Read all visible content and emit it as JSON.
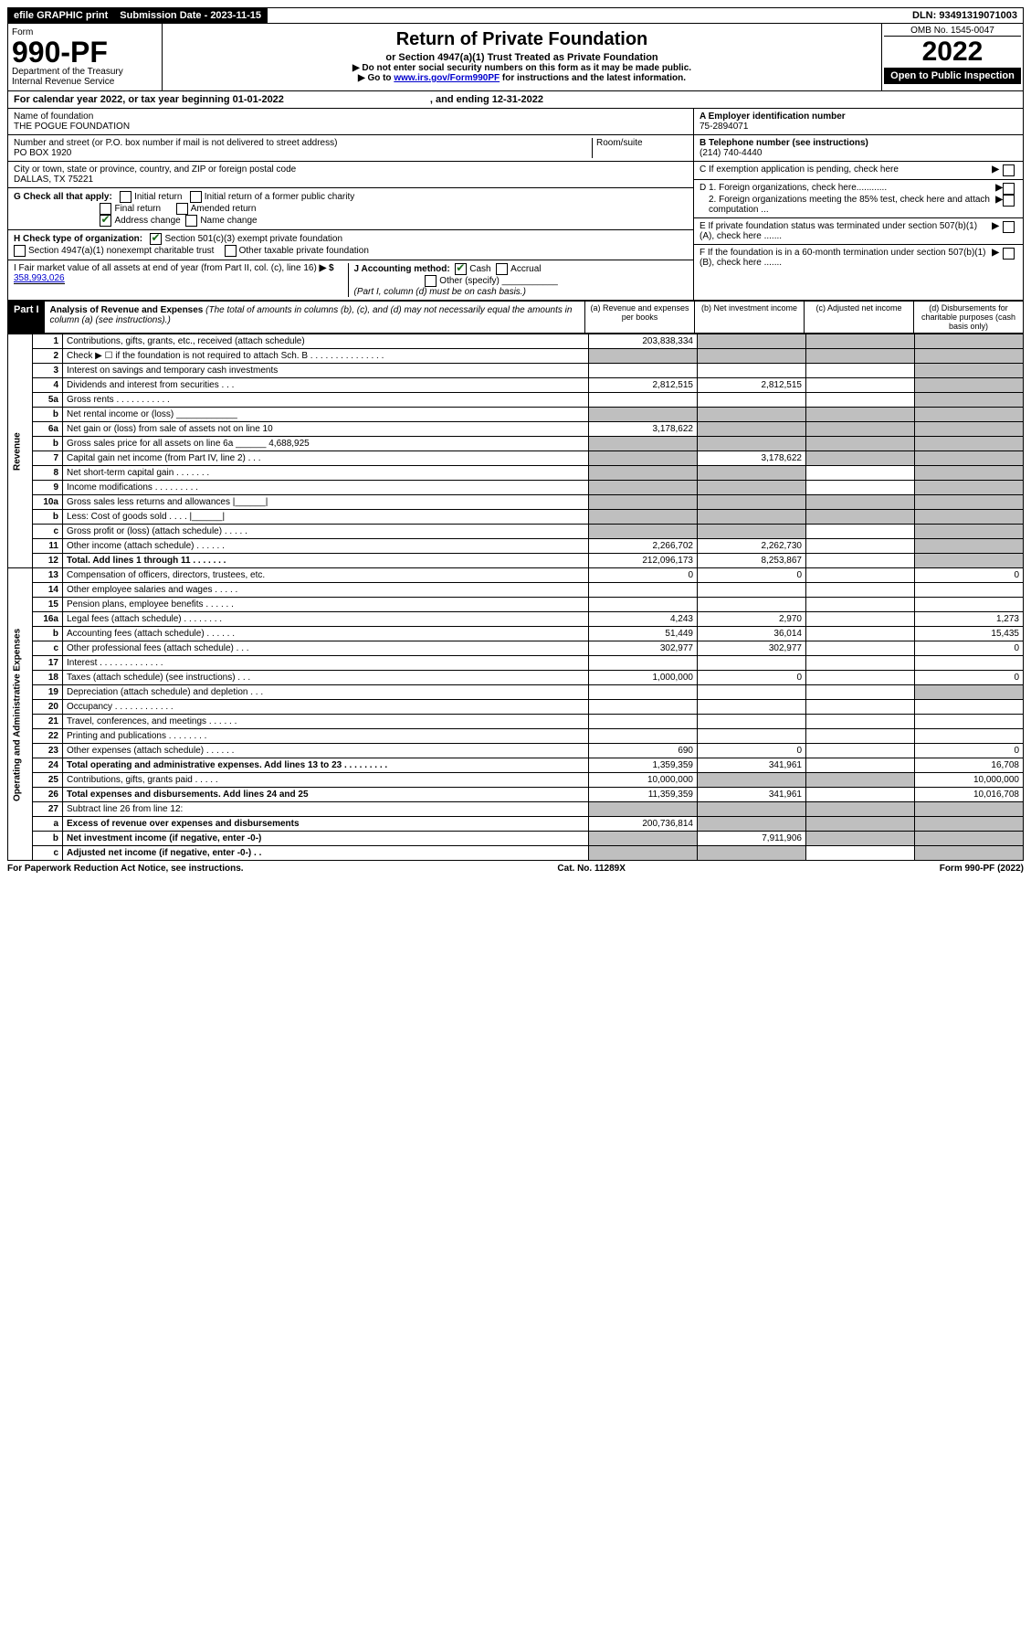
{
  "topbar": {
    "efile": "efile GRAPHIC print",
    "sub_label": "Submission Date - 2023-11-15",
    "dln": "DLN: 93491319071003"
  },
  "header": {
    "form_word": "Form",
    "form_no": "990-PF",
    "dept": "Department of the Treasury",
    "irs": "Internal Revenue Service",
    "title": "Return of Private Foundation",
    "subtitle": "or Section 4947(a)(1) Trust Treated as Private Foundation",
    "note1": "▶ Do not enter social security numbers on this form as it may be made public.",
    "note2_pre": "▶ Go to ",
    "link": "www.irs.gov/Form990PF",
    "note2_post": " for instructions and the latest information.",
    "omb": "OMB No. 1545-0047",
    "year": "2022",
    "open": "Open to Public Inspection"
  },
  "cal": {
    "text": "For calendar year 2022, or tax year beginning 01-01-2022",
    "end": ", and ending 12-31-2022"
  },
  "info": {
    "name_label": "Name of foundation",
    "name": "THE POGUE FOUNDATION",
    "addr_label": "Number and street (or P.O. box number if mail is not delivered to street address)",
    "addr": "PO BOX 1920",
    "room_label": "Room/suite",
    "city_label": "City or town, state or province, country, and ZIP or foreign postal code",
    "city": "DALLAS, TX  75221",
    "a_label": "A Employer identification number",
    "a_val": "75-2894071",
    "b_label": "B Telephone number (see instructions)",
    "b_val": "(214) 740-4440",
    "c_label": "C If exemption application is pending, check here",
    "d1": "D 1. Foreign organizations, check here............",
    "d2": "2. Foreign organizations meeting the 85% test, check here and attach computation ...",
    "e": "E  If private foundation status was terminated under section 507(b)(1)(A), check here .......",
    "f": "F  If the foundation is in a 60-month termination under section 507(b)(1)(B), check here .......",
    "g": "G Check all that apply:",
    "g_opts": [
      "Initial return",
      "Initial return of a former public charity",
      "Final return",
      "Amended return",
      "Address change",
      "Name change"
    ],
    "h": "H Check type of organization:",
    "h1": "Section 501(c)(3) exempt private foundation",
    "h2": "Section 4947(a)(1) nonexempt charitable trust",
    "h3": "Other taxable private foundation",
    "i": "I Fair market value of all assets at end of year (from Part II, col. (c), line 16)",
    "i_val": "358,993,026",
    "j": "J Accounting method:",
    "j_cash": "Cash",
    "j_accr": "Accrual",
    "j_other": "Other (specify)",
    "j_note": "(Part I, column (d) must be on cash basis.)"
  },
  "part1": {
    "label": "Part I",
    "title": "Analysis of Revenue and Expenses",
    "title_note": "(The total of amounts in columns (b), (c), and (d) may not necessarily equal the amounts in column (a) (see instructions).)",
    "col_a": "(a)    Revenue and expenses per books",
    "col_b": "(b)    Net investment income",
    "col_c": "(c)   Adjusted net income",
    "col_d": "(d)   Disbursements for charitable purposes (cash basis only)"
  },
  "sides": {
    "rev": "Revenue",
    "exp": "Operating and Administrative Expenses"
  },
  "rows": [
    {
      "n": "1",
      "t": "Contributions, gifts, grants, etc., received (attach schedule)",
      "a": "203,838,334",
      "b": "sh",
      "c": "sh",
      "d": "sh"
    },
    {
      "n": "2",
      "t": "Check ▶ ☐ if the foundation is not required to attach Sch. B    .  .  .  .  .  .  .  .  .  .  .  .  .  .  .",
      "a": "sh",
      "b": "sh",
      "c": "sh",
      "d": "sh"
    },
    {
      "n": "3",
      "t": "Interest on savings and temporary cash investments",
      "a": "",
      "b": "",
      "c": "",
      "d": "sh"
    },
    {
      "n": "4",
      "t": "Dividends and interest from securities    .   .   .",
      "a": "2,812,515",
      "b": "2,812,515",
      "c": "",
      "d": "sh"
    },
    {
      "n": "5a",
      "t": "Gross rents    .   .   .   .   .   .   .   .   .   .   .",
      "a": "",
      "b": "",
      "c": "",
      "d": "sh"
    },
    {
      "n": "b",
      "t": "Net rental income or (loss)    ____________",
      "a": "sh",
      "b": "sh",
      "c": "sh",
      "d": "sh"
    },
    {
      "n": "6a",
      "t": "Net gain or (loss) from sale of assets not on line 10",
      "a": "3,178,622",
      "b": "sh",
      "c": "sh",
      "d": "sh"
    },
    {
      "n": "b",
      "t": "Gross sales price for all assets on line 6a ______ 4,688,925",
      "a": "sh",
      "b": "sh",
      "c": "sh",
      "d": "sh"
    },
    {
      "n": "7",
      "t": "Capital gain net income (from Part IV, line 2)   .   .   .",
      "a": "sh",
      "b": "3,178,622",
      "c": "sh",
      "d": "sh"
    },
    {
      "n": "8",
      "t": "Net short-term capital gain   .   .   .   .   .   .   .",
      "a": "sh",
      "b": "sh",
      "c": "",
      "d": "sh"
    },
    {
      "n": "9",
      "t": "Income modifications  .   .   .   .   .   .   .   .   .",
      "a": "sh",
      "b": "sh",
      "c": "",
      "d": "sh"
    },
    {
      "n": "10a",
      "t": "Gross sales less returns and allowances   |______|",
      "a": "sh",
      "b": "sh",
      "c": "sh",
      "d": "sh"
    },
    {
      "n": "b",
      "t": "Less: Cost of goods sold    .   .   .   .   |______|",
      "a": "sh",
      "b": "sh",
      "c": "sh",
      "d": "sh"
    },
    {
      "n": "c",
      "t": "Gross profit or (loss) (attach schedule)    .   .   .   .   .",
      "a": "sh",
      "b": "sh",
      "c": "",
      "d": "sh"
    },
    {
      "n": "11",
      "t": "Other income (attach schedule)    .   .   .   .   .   .",
      "a": "2,266,702",
      "b": "2,262,730",
      "c": "",
      "d": "sh"
    },
    {
      "n": "12",
      "t": "Total. Add lines 1 through 11    .   .   .   .   .   .   .",
      "bold": true,
      "a": "212,096,173",
      "b": "8,253,867",
      "c": "",
      "d": "sh"
    },
    {
      "n": "13",
      "t": "Compensation of officers, directors, trustees, etc.",
      "a": "0",
      "b": "0",
      "c": "",
      "d": "0"
    },
    {
      "n": "14",
      "t": "Other employee salaries and wages    .   .   .   .   .",
      "a": "",
      "b": "",
      "c": "",
      "d": ""
    },
    {
      "n": "15",
      "t": "Pension plans, employee benefits  .   .   .   .   .   .",
      "a": "",
      "b": "",
      "c": "",
      "d": ""
    },
    {
      "n": "16a",
      "t": "Legal fees (attach schedule)  .   .   .   .   .   .   .   .",
      "a": "4,243",
      "b": "2,970",
      "c": "",
      "d": "1,273"
    },
    {
      "n": "b",
      "t": "Accounting fees (attach schedule)  .   .   .   .   .   .",
      "a": "51,449",
      "b": "36,014",
      "c": "",
      "d": "15,435"
    },
    {
      "n": "c",
      "t": "Other professional fees (attach schedule)    .   .   .",
      "a": "302,977",
      "b": "302,977",
      "c": "",
      "d": "0"
    },
    {
      "n": "17",
      "t": "Interest  .   .   .   .   .   .   .   .   .   .   .   .   .",
      "a": "",
      "b": "",
      "c": "",
      "d": ""
    },
    {
      "n": "18",
      "t": "Taxes (attach schedule) (see instructions)    .   .   .",
      "a": "1,000,000",
      "b": "0",
      "c": "",
      "d": "0"
    },
    {
      "n": "19",
      "t": "Depreciation (attach schedule) and depletion    .   .   .",
      "a": "",
      "b": "",
      "c": "",
      "d": "sh"
    },
    {
      "n": "20",
      "t": "Occupancy  .   .   .   .   .   .   .   .   .   .   .   .",
      "a": "",
      "b": "",
      "c": "",
      "d": ""
    },
    {
      "n": "21",
      "t": "Travel, conferences, and meetings  .   .   .   .   .   .",
      "a": "",
      "b": "",
      "c": "",
      "d": ""
    },
    {
      "n": "22",
      "t": "Printing and publications  .   .   .   .   .   .   .   .",
      "a": "",
      "b": "",
      "c": "",
      "d": ""
    },
    {
      "n": "23",
      "t": "Other expenses (attach schedule)  .   .   .   .   .   .",
      "a": "690",
      "b": "0",
      "c": "",
      "d": "0"
    },
    {
      "n": "24",
      "t": "Total operating and administrative expenses. Add lines 13 to 23    .   .   .   .   .   .   .   .   .",
      "bold": true,
      "a": "1,359,359",
      "b": "341,961",
      "c": "",
      "d": "16,708"
    },
    {
      "n": "25",
      "t": "Contributions, gifts, grants paid    .   .   .   .   .",
      "a": "10,000,000",
      "b": "sh",
      "c": "sh",
      "d": "10,000,000"
    },
    {
      "n": "26",
      "t": "Total expenses and disbursements. Add lines 24 and 25",
      "bold": true,
      "a": "11,359,359",
      "b": "341,961",
      "c": "",
      "d": "10,016,708"
    },
    {
      "n": "27",
      "t": "Subtract line 26 from line 12:",
      "a": "sh",
      "b": "sh",
      "c": "sh",
      "d": "sh"
    },
    {
      "n": "a",
      "t": "Excess of revenue over expenses and disbursements",
      "bold": true,
      "a": "200,736,814",
      "b": "sh",
      "c": "sh",
      "d": "sh"
    },
    {
      "n": "b",
      "t": "Net investment income (if negative, enter -0-)",
      "bold": true,
      "a": "sh",
      "b": "7,911,906",
      "c": "sh",
      "d": "sh"
    },
    {
      "n": "c",
      "t": "Adjusted net income (if negative, enter -0-)   .   .",
      "bold": true,
      "a": "sh",
      "b": "sh",
      "c": "",
      "d": "sh"
    }
  ],
  "footer": {
    "left": "For Paperwork Reduction Act Notice, see instructions.",
    "mid": "Cat. No. 11289X",
    "right": "Form 990-PF (2022)"
  }
}
